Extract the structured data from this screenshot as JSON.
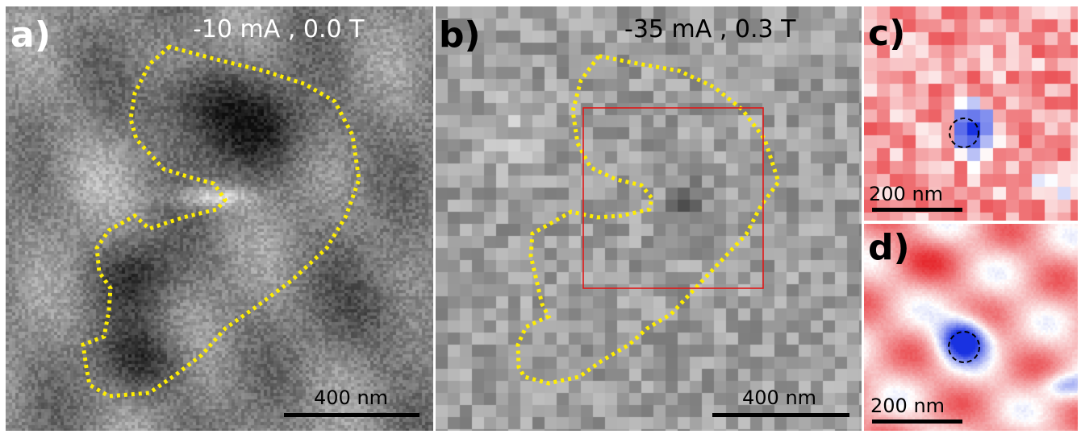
{
  "panels": {
    "a": {
      "label": "a)",
      "condition": "-10 mA , 0.0 T",
      "scale_bar": "400 nm",
      "label_color": "#ffffff",
      "colormap": "grayscale"
    },
    "b": {
      "label": "b)",
      "condition": "-35 mA , 0.3 T",
      "scale_bar": "400 nm",
      "label_color": "#000000",
      "colormap": "grayscale pixelated"
    },
    "c": {
      "label": "c)",
      "scale_bar": "200 nm",
      "label_color": "#000000",
      "colormap": "red-white-blue pixelated"
    },
    "d": {
      "label": "d)",
      "scale_bar": "200 nm",
      "label_color": "#000000",
      "colormap": "red-white-blue smooth"
    }
  },
  "colors": {
    "outline": "#ffee00",
    "roi_box": "#e01818",
    "skyrmion_blue": "#1a2fe0",
    "background_red": "#e8383e"
  }
}
